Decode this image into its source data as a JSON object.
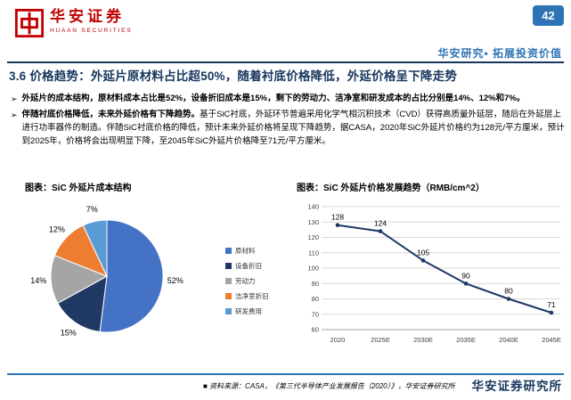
{
  "header": {
    "logo_cn": "华安证券",
    "logo_en": "HUAAN SECURITIES",
    "page_number": "42",
    "tagline": "华安研究• 拓展投资价值"
  },
  "title": "3.6 价格趋势：外延片原材料占比超50%，随着衬底价格降低，外延价格呈下降走势",
  "bullet_marker": "➢",
  "bullets": [
    {
      "lead": "外延片的成本结构，原材料成本占比是52%，设备折旧成本是15%，剩下的劳动力、洁净室和研发成本的占比分别是14%、12%和7%。",
      "rest": ""
    },
    {
      "lead": "伴随衬底价格降低，未来外延价格有下降趋势。",
      "rest": "基于SiC衬底，外延环节普遍采用化学气相沉积技术（CVD）获得高质量外延层，随后在外延层上进行功率器件的制造。伴随SiC衬底价格的降低，预计未来外延价格将呈现下降趋势，据CASA，2020年SiC外延片价格约为128元/平方厘米，预计到2025年，价格将会出现明显下降，至2045年SiC外延片价格降至71元/平方厘米。"
    }
  ],
  "chart_data": [
    {
      "type": "pie",
      "title": "图表：SiC 外延片成本结构",
      "labels": [
        "原材料",
        "设备折旧",
        "劳动力",
        "洁净室折旧",
        "研发费用"
      ],
      "values": [
        52,
        15,
        14,
        12,
        7
      ],
      "colors": [
        "#4472C4",
        "#203864",
        "#A5A5A5",
        "#ED7D31",
        "#5B9BD5"
      ],
      "legend_position": "right"
    },
    {
      "type": "line",
      "title": "图表：SiC 外延片价格发展趋势（RMB/cm^2）",
      "categories": [
        "2020",
        "2025E",
        "2030E",
        "2035E",
        "2040E",
        "2045E"
      ],
      "values": [
        128,
        124,
        105,
        90,
        80,
        71
      ],
      "ylim": [
        60,
        140
      ],
      "ytick_step": 10,
      "line_color": "#1F3864",
      "grid": true,
      "data_labels": true
    }
  ],
  "footer": {
    "source": "■ 资料来源：CASA，《第三代半导体产业发展报告（2020）》，华安证券研究所",
    "institute": "华安证券研究所"
  },
  "colors": {
    "accent_navy": "#17365D",
    "accent_blue": "#2E74B5",
    "logo_red": "#C00000"
  }
}
